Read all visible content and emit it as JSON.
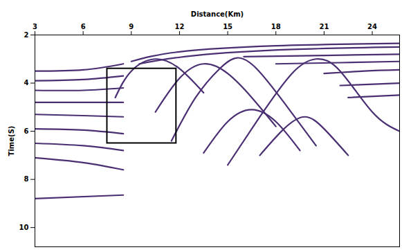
{
  "chart_data": {
    "type": "seismic",
    "x_label": "Distance(Km)",
    "y_label": "Time(S)",
    "xlim": [
      3,
      25.7
    ],
    "xticks": [
      3,
      6,
      9,
      12,
      15,
      18,
      21,
      24
    ],
    "ylim": [
      2,
      10.8
    ],
    "yticks": [
      2,
      4,
      6,
      8,
      10
    ],
    "color": "#4a2f73",
    "series": [
      {
        "x": [
          3,
          6,
          8.5
        ],
        "values": [
          3.5,
          3.45,
          3.2
        ]
      },
      {
        "x": [
          3,
          6,
          8.5
        ],
        "values": [
          3.9,
          3.85,
          3.7
        ]
      },
      {
        "x": [
          3,
          6,
          8.5
        ],
        "values": [
          4.3,
          4.3,
          4.2
        ]
      },
      {
        "x": [
          3,
          6,
          8.5
        ],
        "values": [
          4.8,
          4.8,
          4.8
        ]
      },
      {
        "x": [
          3,
          6,
          8.5
        ],
        "values": [
          5.3,
          5.35,
          5.4
        ]
      },
      {
        "x": [
          3,
          6,
          8.5
        ],
        "values": [
          5.9,
          5.95,
          6.1
        ]
      },
      {
        "x": [
          3,
          6,
          8.5
        ],
        "values": [
          6.5,
          6.6,
          6.8
        ]
      },
      {
        "x": [
          3,
          6,
          8.5
        ],
        "values": [
          7.1,
          7.3,
          7.6
        ]
      },
      {
        "x": [
          3,
          8.5
        ],
        "values": [
          8.8,
          8.65
        ]
      },
      {
        "x": [
          9,
          12,
          18,
          25.7
        ],
        "values": [
          3.1,
          2.7,
          2.45,
          2.35
        ]
      },
      {
        "x": [
          9.5,
          13,
          19,
          25.7
        ],
        "values": [
          3.2,
          2.85,
          2.6,
          2.5
        ]
      },
      {
        "x": [
          16,
          21,
          25.7
        ],
        "values": [
          2.9,
          2.85,
          2.8
        ]
      },
      {
        "x": [
          18,
          22,
          25.7
        ],
        "values": [
          3.2,
          3.15,
          3.1
        ]
      },
      {
        "x": [
          21,
          23.5,
          25.7
        ],
        "values": [
          3.6,
          3.5,
          3.45
        ]
      },
      {
        "x": [
          22,
          25.7
        ],
        "values": [
          4.1,
          4.0
        ]
      },
      {
        "x": [
          22.5,
          25.7
        ],
        "values": [
          4.6,
          4.5
        ]
      },
      {
        "x": [
          8,
          9,
          10.5,
          12,
          13.5
        ],
        "values": [
          4.6,
          3.5,
          3.0,
          3.4,
          4.4
        ]
      },
      {
        "x": [
          10.5,
          12,
          13.5,
          15,
          16.5,
          18
        ],
        "values": [
          5.2,
          3.8,
          3.2,
          3.6,
          4.6,
          5.8
        ]
      },
      {
        "x": [
          11.5,
          13,
          14.5,
          15.6,
          16.8,
          18.5,
          20.5
        ],
        "values": [
          6.4,
          4.6,
          3.4,
          2.95,
          3.4,
          4.8,
          6.6
        ]
      },
      {
        "x": [
          15,
          17,
          19,
          20.5,
          22,
          24,
          25.7
        ],
        "values": [
          7.4,
          5.4,
          3.6,
          3.0,
          3.5,
          5.2,
          6.0
        ]
      },
      {
        "x": [
          13.5,
          15,
          16.5,
          18,
          19.5
        ],
        "values": [
          6.9,
          5.6,
          5.1,
          5.6,
          6.8
        ]
      },
      {
        "x": [
          17,
          18.5,
          19.8,
          21,
          22.5
        ],
        "values": [
          7.0,
          5.9,
          5.4,
          5.9,
          7.0
        ]
      }
    ],
    "box": {
      "x": [
        7.5,
        11.8
      ],
      "y": [
        3.4,
        6.5
      ]
    }
  }
}
